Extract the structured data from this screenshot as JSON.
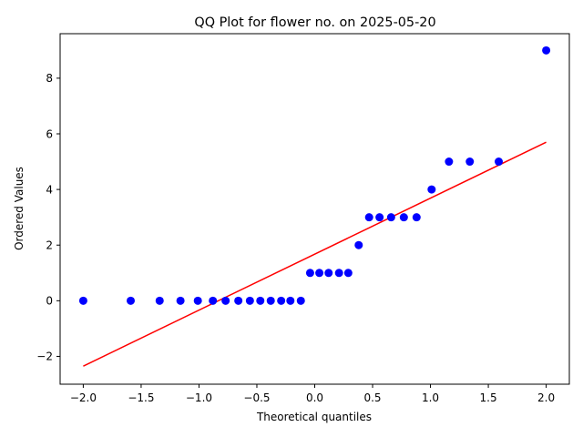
{
  "chart_data": {
    "type": "scatter",
    "title": "QQ Plot for flower no. on 2025-05-20",
    "xlabel": "Theoretical quantiles",
    "ylabel": "Ordered Values",
    "xlim": [
      -2.2,
      2.2
    ],
    "ylim": [
      -3.0,
      9.6
    ],
    "x_ticks": [
      -2.0,
      -1.5,
      -1.0,
      -0.5,
      0.0,
      0.5,
      1.0,
      1.5,
      2.0
    ],
    "x_tick_labels": [
      "−2.0",
      "−1.5",
      "−1.0",
      "−0.5",
      "0.0",
      "0.5",
      "1.0",
      "1.5",
      "2.0"
    ],
    "y_ticks": [
      -2,
      0,
      2,
      4,
      6,
      8
    ],
    "y_tick_labels": [
      "−2",
      "0",
      "2",
      "4",
      "6",
      "8"
    ],
    "grid": false,
    "series": [
      {
        "kind": "points",
        "color": "#0000ff",
        "x": [
          -2.0,
          -1.59,
          -1.34,
          -1.16,
          -1.01,
          -0.88,
          -0.77,
          -0.66,
          -0.56,
          -0.47,
          -0.38,
          -0.29,
          -0.21,
          -0.12,
          -0.04,
          0.04,
          0.12,
          0.21,
          0.29,
          0.38,
          0.47,
          0.56,
          0.66,
          0.77,
          0.88,
          1.01,
          1.16,
          1.34,
          1.59,
          2.0
        ],
        "y": [
          0,
          0,
          0,
          0,
          0,
          0,
          0,
          0,
          0,
          0,
          0,
          0,
          0,
          0,
          1,
          1,
          1,
          1,
          1,
          2,
          3,
          3,
          3,
          3,
          3,
          4,
          5,
          5,
          5,
          9
        ]
      },
      {
        "kind": "line",
        "color": "#ff0000",
        "x": [
          -2.0,
          2.0
        ],
        "y": [
          -2.35,
          5.7
        ]
      }
    ]
  }
}
